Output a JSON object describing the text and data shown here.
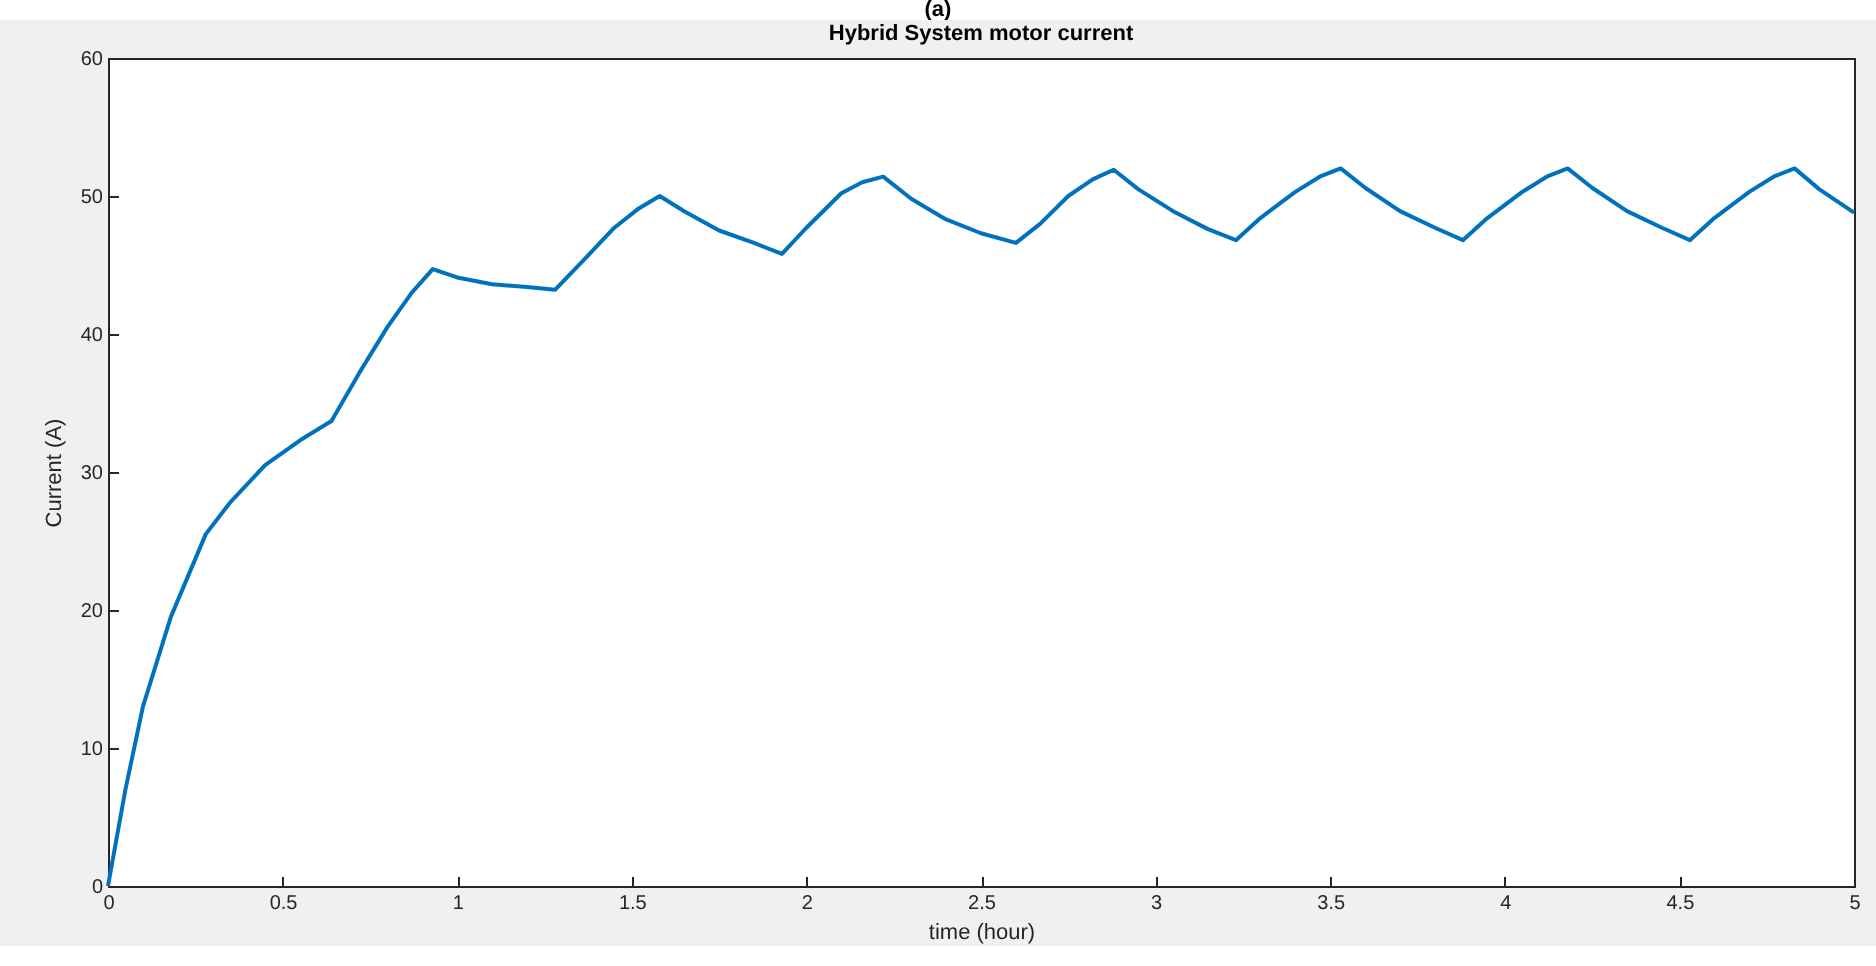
{
  "chart_data": {
    "type": "line",
    "title": "Hybrid System motor current",
    "xlabel": "time (hour)",
    "ylabel": "Current (A)",
    "annotations": [
      "(a)"
    ],
    "x": [
      0,
      0.05,
      0.1,
      0.18,
      0.28,
      0.35,
      0.45,
      0.55,
      0.64,
      0.72,
      0.8,
      0.87,
      0.93,
      1.0,
      1.1,
      1.2,
      1.28,
      1.36,
      1.45,
      1.52,
      1.58,
      1.65,
      1.75,
      1.85,
      1.93,
      2.0,
      2.1,
      2.16,
      2.22,
      2.3,
      2.4,
      2.5,
      2.6,
      2.67,
      2.75,
      2.82,
      2.88,
      2.95,
      3.05,
      3.15,
      3.23,
      3.3,
      3.4,
      3.47,
      3.53,
      3.6,
      3.7,
      3.8,
      3.88,
      3.95,
      4.05,
      4.12,
      4.18,
      4.25,
      4.35,
      4.45,
      4.53,
      4.6,
      4.7,
      4.77,
      4.83,
      4.9,
      5.0
    ],
    "series": [
      {
        "color": "#0072bd",
        "values": [
          0,
          7,
          13,
          19.5,
          25.5,
          27.8,
          30.5,
          32.3,
          33.7,
          37.2,
          40.5,
          43,
          44.7,
          44.1,
          43.6,
          43.4,
          43.2,
          45.3,
          47.7,
          49.1,
          50,
          48.9,
          47.5,
          46.6,
          45.8,
          47.7,
          50.2,
          51,
          51.4,
          49.8,
          48.3,
          47.3,
          46.6,
          48,
          50,
          51.2,
          51.9,
          50.5,
          48.9,
          47.6,
          46.8,
          48.4,
          50.3,
          51.4,
          52,
          50.6,
          48.9,
          47.7,
          46.8,
          48.4,
          50.3,
          51.4,
          52,
          50.6,
          48.9,
          47.7,
          46.8,
          48.4,
          50.3,
          51.4,
          52,
          50.5,
          48.8
        ]
      }
    ],
    "xlim": [
      0,
      5
    ],
    "xticks": [
      0,
      0.5,
      1,
      1.5,
      2,
      2.5,
      3,
      3.5,
      4,
      4.5,
      5
    ],
    "ylim": [
      0,
      60
    ],
    "yticks": [
      0,
      10,
      20,
      30,
      40,
      50,
      60
    ],
    "grid": false,
    "legend": false,
    "marker": "none",
    "line_style": "solid"
  }
}
